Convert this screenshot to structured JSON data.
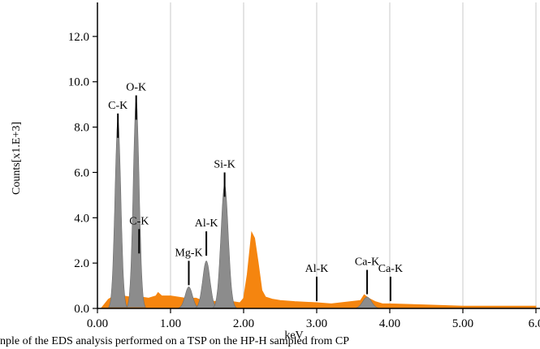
{
  "chart_data": {
    "type": "area",
    "title": "",
    "xlabel": "keV",
    "ylabel": "Counts[x1.E+3]",
    "xlim": [
      0.0,
      6.0
    ],
    "ylim": [
      0.0,
      13.5
    ],
    "x_ticks": [
      "0.00",
      "1.00",
      "2.00",
      "3.00",
      "4.00",
      "5.00",
      "6.0"
    ],
    "y_ticks": [
      "0.0",
      "2.0",
      "4.0",
      "6.0",
      "8.0",
      "10.0",
      "12.0"
    ],
    "grid": "vertical",
    "colors": {
      "spectrum": "#f5850f",
      "peaks": "#8c8c8c"
    },
    "series": [
      {
        "x": [
          0.05,
          0.15,
          0.2,
          0.3,
          0.35,
          0.45,
          0.6,
          0.7,
          0.8,
          0.83,
          0.88,
          1.0,
          1.1,
          1.2,
          1.35,
          1.43,
          1.65,
          1.85,
          1.95,
          2.0,
          2.05,
          2.11,
          2.15,
          2.2,
          2.25,
          2.3,
          2.4,
          2.5,
          2.7,
          3.0,
          3.2,
          3.6,
          3.65,
          3.71,
          3.8,
          3.9,
          4.0,
          4.5,
          5.0,
          5.5,
          6.0
        ],
        "y": [
          0.0,
          0.4,
          0.5,
          0.5,
          0.55,
          0.5,
          0.5,
          0.45,
          0.55,
          0.7,
          0.55,
          0.55,
          0.5,
          0.45,
          0.45,
          0.35,
          0.3,
          0.3,
          0.25,
          0.45,
          1.5,
          3.35,
          3.1,
          2.0,
          0.8,
          0.5,
          0.4,
          0.35,
          0.3,
          0.25,
          0.2,
          0.35,
          0.6,
          0.45,
          0.3,
          0.2,
          0.2,
          0.15,
          0.1,
          0.1,
          0.1
        ]
      }
    ],
    "peaks": [
      {
        "center": 0.28,
        "height": 8.3,
        "width": 0.04
      },
      {
        "center": 0.53,
        "height": 9.2,
        "width": 0.04
      },
      {
        "center": 1.25,
        "height": 0.95,
        "width": 0.05
      },
      {
        "center": 1.49,
        "height": 2.1,
        "width": 0.05
      },
      {
        "center": 1.74,
        "height": 5.45,
        "width": 0.05
      },
      {
        "center": 3.69,
        "height": 0.5,
        "width": 0.06
      }
    ],
    "annotations": [
      {
        "label": "C-K",
        "x": 0.28,
        "y": 8.6
      },
      {
        "label": "O-K",
        "x": 0.53,
        "y": 9.4
      },
      {
        "label": "C-K",
        "x": 0.57,
        "y": 3.5
      },
      {
        "label": "Mg-K",
        "x": 1.25,
        "y": 2.1
      },
      {
        "label": "Al-K",
        "x": 1.49,
        "y": 3.4
      },
      {
        "label": "Si-K",
        "x": 1.74,
        "y": 6.0
      },
      {
        "label": "Al-K",
        "x": 3.0,
        "y": 1.4
      },
      {
        "label": "Ca-K",
        "x": 3.69,
        "y": 1.7
      },
      {
        "label": "Ca-K",
        "x": 4.01,
        "y": 1.4
      }
    ]
  },
  "caption": "nple of the EDS analysis performed on a TSP on the HP-H sampled from CP"
}
